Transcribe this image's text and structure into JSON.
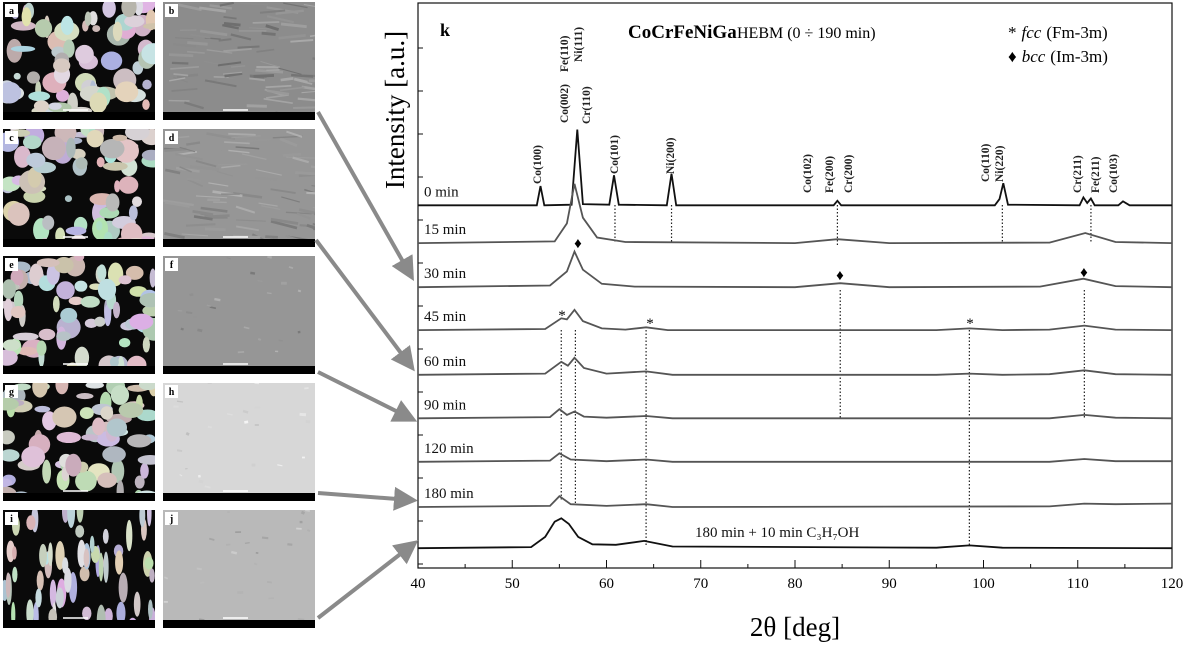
{
  "chart_data": {
    "type": "line",
    "title": "CoCrFeNiGa",
    "subtitle": "HEBM (0 ÷ 190 min)",
    "panel_label": "k",
    "xlabel": "2θ [deg]",
    "ylabel": "Intensity [a.u.]",
    "xlim": [
      40,
      120
    ],
    "xticks": [
      40,
      50,
      60,
      70,
      80,
      90,
      100,
      110,
      120
    ],
    "ylim": [
      0,
      100
    ],
    "series": [
      {
        "name": "0 min",
        "color": "#111111",
        "x": [
          40,
          52.6,
          53.0,
          53.4,
          56.3,
          56.9,
          57.5,
          60.3,
          60.8,
          61.3,
          66.4,
          66.9,
          67.4,
          84.1,
          84.5,
          84.9,
          101.2,
          101.7,
          102.1,
          102.6,
          110.2,
          110.6,
          111.0,
          111.4,
          111.8,
          114.3,
          114.8,
          115.5,
          120
        ],
        "values": [
          64.2,
          64.2,
          67.6,
          64.2,
          64.3,
          77.6,
          64.4,
          64.3,
          69.5,
          64.3,
          64.2,
          69.8,
          64.2,
          64.2,
          65.0,
          64.2,
          64.2,
          65.3,
          68.1,
          64.3,
          64.2,
          65.6,
          64.6,
          65.4,
          64.2,
          64.2,
          64.9,
          64.2,
          64.2
        ]
      },
      {
        "name": "15 min",
        "color": "#555555",
        "x": [
          40,
          54.5,
          55.8,
          56.6,
          57.5,
          59,
          62,
          80,
          84.5,
          90,
          107,
          110.8,
          114,
          120
        ],
        "values": [
          57.5,
          57.8,
          61,
          68,
          62,
          58.5,
          57.7,
          57.5,
          58.2,
          57.5,
          57.6,
          59.3,
          57.7,
          57.5
        ]
      },
      {
        "name": "30 min",
        "color": "#555555",
        "x": [
          40,
          54,
          55.8,
          56.6,
          57.5,
          59.5,
          63,
          80,
          84.8,
          90,
          106,
          110.6,
          114,
          120
        ],
        "values": [
          49.7,
          50,
          52.5,
          56,
          52.8,
          50.3,
          49.8,
          49.7,
          50.4,
          49.7,
          49.8,
          51.2,
          49.9,
          49.7
        ]
      },
      {
        "name": "45 min",
        "color": "#555555",
        "x": [
          40,
          53.5,
          55.2,
          55.8,
          56.6,
          57.5,
          59.5,
          62,
          64.2,
          66.5,
          95,
          98.5,
          102,
          107,
          110.7,
          114,
          120
        ],
        "values": [
          42.1,
          42.3,
          44.2,
          44,
          45.7,
          43.7,
          42.4,
          42.2,
          42.6,
          42.1,
          42.1,
          42.4,
          42.1,
          42.2,
          42.9,
          42.2,
          42.1
        ]
      },
      {
        "name": "60 min",
        "color": "#555555",
        "x": [
          40,
          53.5,
          55.2,
          55.9,
          56.6,
          57.6,
          60,
          64.2,
          67,
          95,
          98.5,
          102,
          107,
          110.7,
          114,
          120
        ],
        "values": [
          34.2,
          34.4,
          36.5,
          35.8,
          37.2,
          35.4,
          34.4,
          34.8,
          34.2,
          34.2,
          34.4,
          34.2,
          34.3,
          35,
          34.3,
          34.2
        ]
      },
      {
        "name": "90 min",
        "color": "#555555",
        "x": [
          40,
          54,
          55,
          55.8,
          56.6,
          57.6,
          60,
          64.2,
          67,
          107,
          110.7,
          114,
          120
        ],
        "values": [
          26.5,
          26.7,
          28.1,
          27.1,
          27.7,
          26.8,
          26.6,
          26.9,
          26.5,
          26.5,
          27.1,
          26.6,
          26.5
        ]
      },
      {
        "name": "120 min",
        "color": "#555555",
        "x": [
          40,
          54,
          55,
          56.2,
          60,
          64.2,
          67,
          107,
          110.7,
          114,
          120
        ],
        "values": [
          18.8,
          19,
          20.3,
          19.2,
          18.9,
          19.2,
          18.8,
          18.8,
          19.3,
          18.9,
          18.9
        ]
      },
      {
        "name": "180 min",
        "color": "#555555",
        "x": [
          40,
          54,
          55,
          56.2,
          60,
          64.2,
          67,
          107,
          110.7,
          114,
          120
        ],
        "values": [
          10.8,
          11,
          12.7,
          11.3,
          11,
          11.3,
          10.8,
          10.9,
          11.4,
          11.3,
          11.4
        ]
      },
      {
        "name": "180 min + 10 min C₃H₇OH",
        "color": "#111111",
        "x": [
          40,
          52,
          53.5,
          54.5,
          55.2,
          56,
          57,
          58.5,
          61,
          64,
          67,
          95,
          98.5,
          102,
          120
        ],
        "values": [
          3.5,
          3.7,
          5.5,
          8.2,
          8.8,
          7.8,
          5.5,
          4.2,
          4.1,
          4.8,
          3.8,
          3.6,
          4.0,
          3.6,
          3.5
        ]
      }
    ],
    "annotations": [
      "Co(100)",
      "Co(002)",
      "Fe(110)",
      "Ni(111)",
      "Cr(110)",
      "Co(101)",
      "Ni(200)",
      "Co(102)",
      "Fe(200)",
      "Cr(200)",
      "Co(110)",
      "Ni(220)",
      "Cr(211)",
      "Fe(211)",
      "Co(103)"
    ],
    "peak_markers": [
      "♦",
      "♦",
      "♦",
      "*",
      "*",
      "*"
    ],
    "phase_legend": [
      {
        "symbol": "*",
        "name": "fcc",
        "group": "(Fm-3m)"
      },
      {
        "symbol": "♦",
        "name": "bcc",
        "group": "(Im-3m)"
      }
    ]
  },
  "sem_panels": [
    "a",
    "b",
    "c",
    "d",
    "e",
    "f",
    "g",
    "h",
    "i",
    "j"
  ]
}
